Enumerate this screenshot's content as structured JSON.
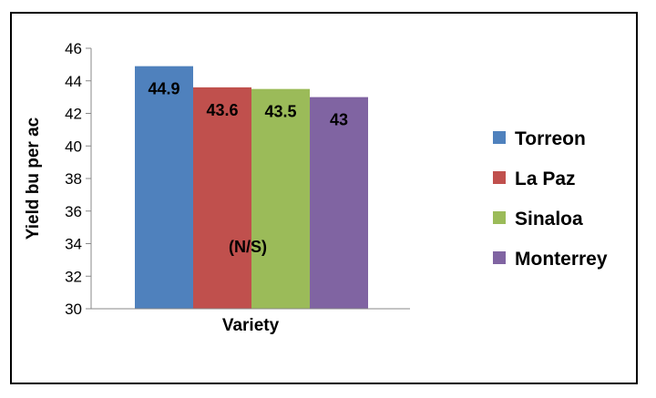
{
  "chart_data": {
    "type": "bar",
    "title": "",
    "xlabel": "Variety",
    "ylabel": "Yield bu per ac",
    "ylim": [
      30,
      46
    ],
    "yticks": [
      30,
      32,
      34,
      36,
      38,
      40,
      42,
      44,
      46
    ],
    "categories": [
      "Variety"
    ],
    "series": [
      {
        "name": "Torreon",
        "values": [
          44.9
        ],
        "label": "44.9",
        "color": "#4F81BD"
      },
      {
        "name": "La Paz",
        "values": [
          43.6
        ],
        "label": "43.6",
        "color": "#C0504D"
      },
      {
        "name": "Sinaloa",
        "values": [
          43.5
        ],
        "label": "43.5",
        "color": "#9BBB59"
      },
      {
        "name": "Monterrey",
        "values": [
          43
        ],
        "label": "43",
        "color": "#8064A2"
      }
    ],
    "annotation": "(N/S)",
    "legend_position": "right",
    "grid": false
  }
}
